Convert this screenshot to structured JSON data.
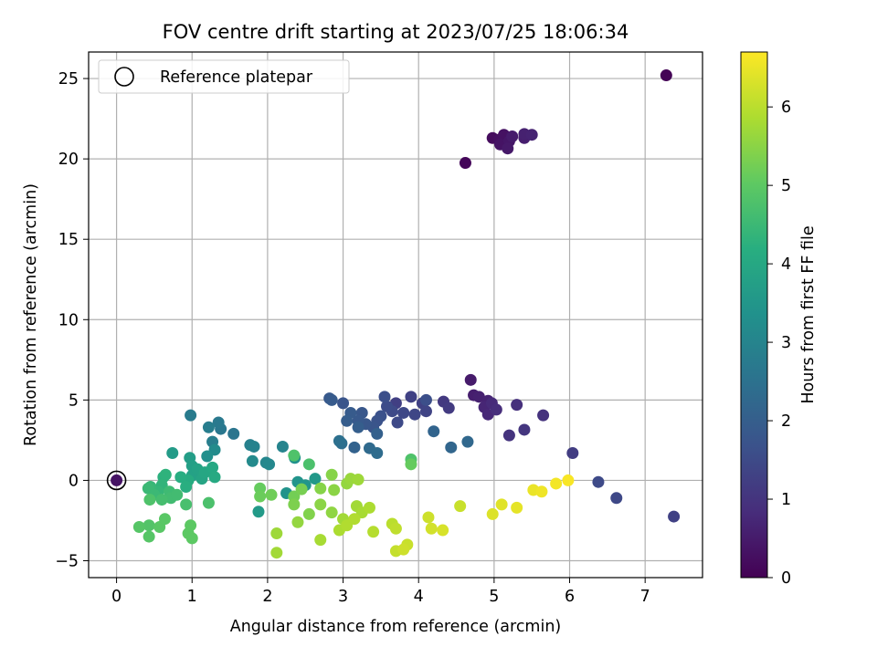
{
  "chart_data": {
    "type": "scatter",
    "title": "FOV centre drift starting at 2023/07/25 18:06:34",
    "xlabel": "Angular distance from reference (arcmin)",
    "ylabel": "Rotation from reference (arcmin)",
    "colorbar_label": "Hours from first FF file",
    "xlim": [
      -0.37,
      7.76
    ],
    "ylim": [
      -6.05,
      26.65
    ],
    "clim": [
      0,
      6.7
    ],
    "x_ticks": [
      0,
      1,
      2,
      3,
      4,
      5,
      6,
      7
    ],
    "y_ticks": [
      -5,
      0,
      5,
      10,
      15,
      20,
      25
    ],
    "colorbar_ticks": [
      0,
      1,
      2,
      3,
      4,
      5,
      6
    ],
    "grid": true,
    "legend": {
      "location": "upper-left",
      "label": "Reference platepar",
      "marker": "open-circle"
    },
    "reference_point": {
      "x": 0,
      "y": 0
    },
    "colormap": "viridis",
    "points": [
      [
        7.28,
        25.2,
        0.05
      ],
      [
        4.62,
        19.75,
        0.1
      ],
      [
        4.98,
        21.3,
        0.2
      ],
      [
        5.07,
        21.2,
        0.25
      ],
      [
        5.13,
        21.5,
        0.3
      ],
      [
        5.08,
        20.9,
        0.35
      ],
      [
        5.2,
        21.1,
        0.4
      ],
      [
        5.18,
        20.65,
        0.45
      ],
      [
        5.24,
        21.4,
        0.5
      ],
      [
        5.4,
        21.3,
        0.55
      ],
      [
        5.4,
        21.55,
        0.6
      ],
      [
        5.5,
        21.5,
        0.65
      ],
      [
        4.69,
        6.25,
        0.5
      ],
      [
        4.73,
        5.3,
        0.55
      ],
      [
        4.8,
        5.2,
        0.6
      ],
      [
        4.92,
        4.95,
        0.65
      ],
      [
        4.87,
        4.55,
        0.7
      ],
      [
        4.92,
        4.1,
        0.75
      ],
      [
        4.97,
        4.8,
        0.8
      ],
      [
        5.03,
        4.4,
        0.85
      ],
      [
        5.3,
        4.7,
        0.9
      ],
      [
        5.65,
        4.05,
        0.95
      ],
      [
        5.2,
        2.8,
        1.0
      ],
      [
        5.4,
        3.15,
        1.05
      ],
      [
        4.33,
        4.9,
        1.1
      ],
      [
        4.4,
        4.5,
        1.15
      ],
      [
        6.04,
        1.7,
        1.2
      ],
      [
        3.7,
        4.8,
        1.25
      ],
      [
        3.9,
        5.2,
        1.3
      ],
      [
        4.05,
        4.8,
        1.3
      ],
      [
        4.1,
        4.3,
        1.35
      ],
      [
        3.95,
        4.1,
        1.4
      ],
      [
        3.8,
        4.2,
        1.45
      ],
      [
        3.72,
        3.6,
        1.5
      ],
      [
        3.65,
        4.3,
        1.5
      ],
      [
        3.58,
        4.6,
        1.55
      ],
      [
        4.1,
        5.0,
        1.6
      ],
      [
        3.55,
        5.2,
        1.6
      ],
      [
        3.5,
        4.0,
        1.65
      ],
      [
        3.45,
        3.7,
        1.7
      ],
      [
        3.4,
        3.3,
        1.75
      ],
      [
        3.3,
        3.5,
        1.8
      ],
      [
        3.25,
        4.2,
        1.8
      ],
      [
        3.2,
        3.7,
        1.85
      ],
      [
        3.1,
        4.2,
        1.9
      ],
      [
        3.05,
        3.7,
        1.95
      ],
      [
        3.2,
        3.3,
        2.0
      ],
      [
        2.82,
        5.1,
        1.85
      ],
      [
        2.85,
        5.0,
        1.9
      ],
      [
        3.0,
        4.8,
        1.75
      ],
      [
        3.45,
        2.9,
        2.05
      ],
      [
        3.15,
        2.05,
        2.1
      ],
      [
        4.2,
        3.05,
        2.15
      ],
      [
        4.43,
        2.05,
        2.2
      ],
      [
        4.65,
        2.4,
        2.25
      ],
      [
        3.35,
        2.0,
        2.3
      ],
      [
        3.45,
        1.7,
        2.35
      ],
      [
        6.38,
        -0.1,
        1.5
      ],
      [
        6.62,
        -1.1,
        1.45
      ],
      [
        7.38,
        -2.25,
        1.3
      ],
      [
        2.98,
        2.3,
        2.4
      ],
      [
        2.95,
        2.45,
        2.45
      ],
      [
        1.55,
        2.9,
        2.6
      ],
      [
        1.38,
        3.2,
        2.65
      ],
      [
        1.35,
        3.6,
        2.7
      ],
      [
        1.22,
        3.3,
        2.8
      ],
      [
        0.98,
        4.05,
        2.75
      ],
      [
        1.27,
        2.4,
        2.85
      ],
      [
        1.77,
        2.2,
        2.9
      ],
      [
        1.82,
        2.1,
        2.95
      ],
      [
        2.2,
        2.1,
        3.0
      ],
      [
        1.98,
        1.1,
        3.05
      ],
      [
        2.02,
        1.0,
        3.1
      ],
      [
        1.8,
        1.2,
        3.15
      ],
      [
        1.3,
        1.9,
        3.2
      ],
      [
        1.2,
        1.5,
        3.3
      ],
      [
        2.36,
        1.4,
        3.35
      ],
      [
        2.25,
        -0.8,
        3.4
      ],
      [
        2.4,
        -0.1,
        3.45
      ],
      [
        2.5,
        -0.3,
        3.5
      ],
      [
        2.63,
        0.1,
        3.55
      ],
      [
        1.88,
        -1.95,
        3.6
      ],
      [
        0.74,
        1.7,
        3.65
      ],
      [
        0.97,
        1.4,
        3.7
      ],
      [
        1.0,
        0.9,
        3.75
      ],
      [
        1.0,
        0.3,
        3.8
      ],
      [
        1.07,
        0.7,
        3.85
      ],
      [
        1.13,
        0.1,
        3.9
      ],
      [
        1.17,
        0.5,
        3.95
      ],
      [
        1.27,
        0.8,
        4.0
      ],
      [
        1.3,
        0.2,
        4.05
      ],
      [
        0.95,
        0.0,
        4.1
      ],
      [
        0.85,
        0.2,
        4.15
      ],
      [
        0.92,
        -0.4,
        4.2
      ],
      [
        0.62,
        0.2,
        4.25
      ],
      [
        0.65,
        0.35,
        4.3
      ],
      [
        0.6,
        -0.3,
        4.35
      ],
      [
        0.55,
        -0.7,
        4.4
      ],
      [
        0.45,
        -0.4,
        4.45
      ],
      [
        0.42,
        -0.5,
        4.5
      ],
      [
        0.5,
        -0.9,
        4.5
      ],
      [
        0.7,
        -0.7,
        4.55
      ],
      [
        0.72,
        -1.1,
        4.6
      ],
      [
        0.8,
        -0.9,
        4.6
      ],
      [
        0.6,
        -1.2,
        4.65
      ],
      [
        0.92,
        -1.5,
        4.7
      ],
      [
        1.22,
        -1.4,
        4.75
      ],
      [
        0.44,
        -1.2,
        4.8
      ],
      [
        0.43,
        -2.8,
        4.85
      ],
      [
        0.3,
        -2.9,
        4.9
      ],
      [
        0.43,
        -3.5,
        4.9
      ],
      [
        0.57,
        -2.9,
        4.95
      ],
      [
        0.64,
        -2.4,
        4.95
      ],
      [
        0.98,
        -2.8,
        5.0
      ],
      [
        0.95,
        -3.3,
        5.0
      ],
      [
        1.0,
        -3.6,
        5.0
      ],
      [
        2.35,
        1.55,
        4.8
      ],
      [
        2.55,
        1.0,
        4.75
      ],
      [
        3.9,
        1.3,
        4.8
      ],
      [
        3.9,
        1.0,
        5.1
      ],
      [
        1.9,
        -0.5,
        5.1
      ],
      [
        1.9,
        -1.0,
        5.15
      ],
      [
        2.05,
        -0.9,
        5.2
      ],
      [
        2.35,
        -1.0,
        5.25
      ],
      [
        2.45,
        -0.55,
        5.3
      ],
      [
        2.35,
        -1.5,
        5.35
      ],
      [
        2.55,
        -2.1,
        5.4
      ],
      [
        2.7,
        -0.5,
        5.45
      ],
      [
        2.7,
        -1.5,
        5.5
      ],
      [
        2.85,
        0.35,
        5.45
      ],
      [
        2.88,
        -0.6,
        5.5
      ],
      [
        2.85,
        -2.0,
        5.55
      ],
      [
        3.05,
        -0.2,
        5.6
      ],
      [
        3.1,
        0.1,
        5.65
      ],
      [
        3.2,
        0.05,
        5.7
      ],
      [
        3.18,
        -1.6,
        5.75
      ],
      [
        3.0,
        -2.4,
        5.75
      ],
      [
        3.25,
        -2.0,
        5.8
      ],
      [
        3.35,
        -1.7,
        5.85
      ],
      [
        2.4,
        -2.6,
        5.6
      ],
      [
        2.12,
        -3.3,
        5.7
      ],
      [
        2.12,
        -4.5,
        5.75
      ],
      [
        2.7,
        -3.7,
        5.8
      ],
      [
        2.95,
        -3.1,
        5.85
      ],
      [
        3.05,
        -2.8,
        5.9
      ],
      [
        3.15,
        -2.4,
        5.9
      ],
      [
        3.4,
        -3.2,
        5.95
      ],
      [
        3.65,
        -2.7,
        6.0
      ],
      [
        3.7,
        -3.0,
        6.05
      ],
      [
        3.7,
        -4.4,
        6.1
      ],
      [
        3.85,
        -4.0,
        6.15
      ],
      [
        3.8,
        -4.3,
        6.2
      ],
      [
        4.13,
        -2.3,
        6.2
      ],
      [
        4.17,
        -3.0,
        6.25
      ],
      [
        4.32,
        -3.1,
        6.3
      ],
      [
        4.55,
        -1.6,
        6.15
      ],
      [
        4.98,
        -2.1,
        6.35
      ],
      [
        5.1,
        -1.5,
        6.4
      ],
      [
        5.3,
        -1.7,
        6.45
      ],
      [
        5.52,
        -0.6,
        6.5
      ],
      [
        5.63,
        -0.7,
        6.55
      ],
      [
        5.82,
        -0.2,
        6.6
      ],
      [
        5.98,
        0.0,
        6.65
      ]
    ]
  }
}
